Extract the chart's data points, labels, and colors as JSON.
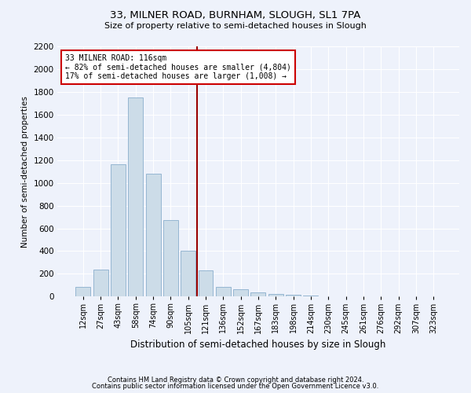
{
  "title1": "33, MILNER ROAD, BURNHAM, SLOUGH, SL1 7PA",
  "title2": "Size of property relative to semi-detached houses in Slough",
  "xlabel": "Distribution of semi-detached houses by size in Slough",
  "ylabel": "Number of semi-detached properties",
  "footnote1": "Contains HM Land Registry data © Crown copyright and database right 2024.",
  "footnote2": "Contains public sector information licensed under the Open Government Licence v3.0.",
  "annotation_line1": "33 MILNER ROAD: 116sqm",
  "annotation_line2": "← 82% of semi-detached houses are smaller (4,804)",
  "annotation_line3": "17% of semi-detached houses are larger (1,008) →",
  "property_size": 116,
  "bar_labels": [
    "12sqm",
    "27sqm",
    "43sqm",
    "58sqm",
    "74sqm",
    "90sqm",
    "105sqm",
    "121sqm",
    "136sqm",
    "152sqm",
    "167sqm",
    "183sqm",
    "198sqm",
    "214sqm",
    "230sqm",
    "245sqm",
    "261sqm",
    "276sqm",
    "292sqm",
    "307sqm",
    "323sqm"
  ],
  "bar_centers": [
    0,
    1,
    2,
    3,
    4,
    5,
    6,
    7,
    8,
    9,
    10,
    11,
    12,
    13,
    14,
    15,
    16,
    17,
    18,
    19,
    20
  ],
  "bar_heights": [
    85,
    240,
    1160,
    1750,
    1080,
    670,
    400,
    230,
    85,
    65,
    35,
    20,
    15,
    8,
    5,
    3,
    2,
    2,
    1,
    1,
    1
  ],
  "bar_color": "#ccdce8",
  "bar_edge_color": "#8aaecc",
  "vline_index": 7,
  "vline_color": "#990000",
  "ylim": [
    0,
    2200
  ],
  "yticks": [
    0,
    200,
    400,
    600,
    800,
    1000,
    1200,
    1400,
    1600,
    1800,
    2000,
    2200
  ],
  "bar_width": 0.85,
  "bg_color": "#eef2fb",
  "grid_color": "#ffffff",
  "annotation_box_color": "#ffffff",
  "annotation_box_edge": "#cc0000",
  "title1_fontsize": 9.5,
  "title2_fontsize": 8,
  "ylabel_fontsize": 7.5,
  "xlabel_fontsize": 8.5
}
